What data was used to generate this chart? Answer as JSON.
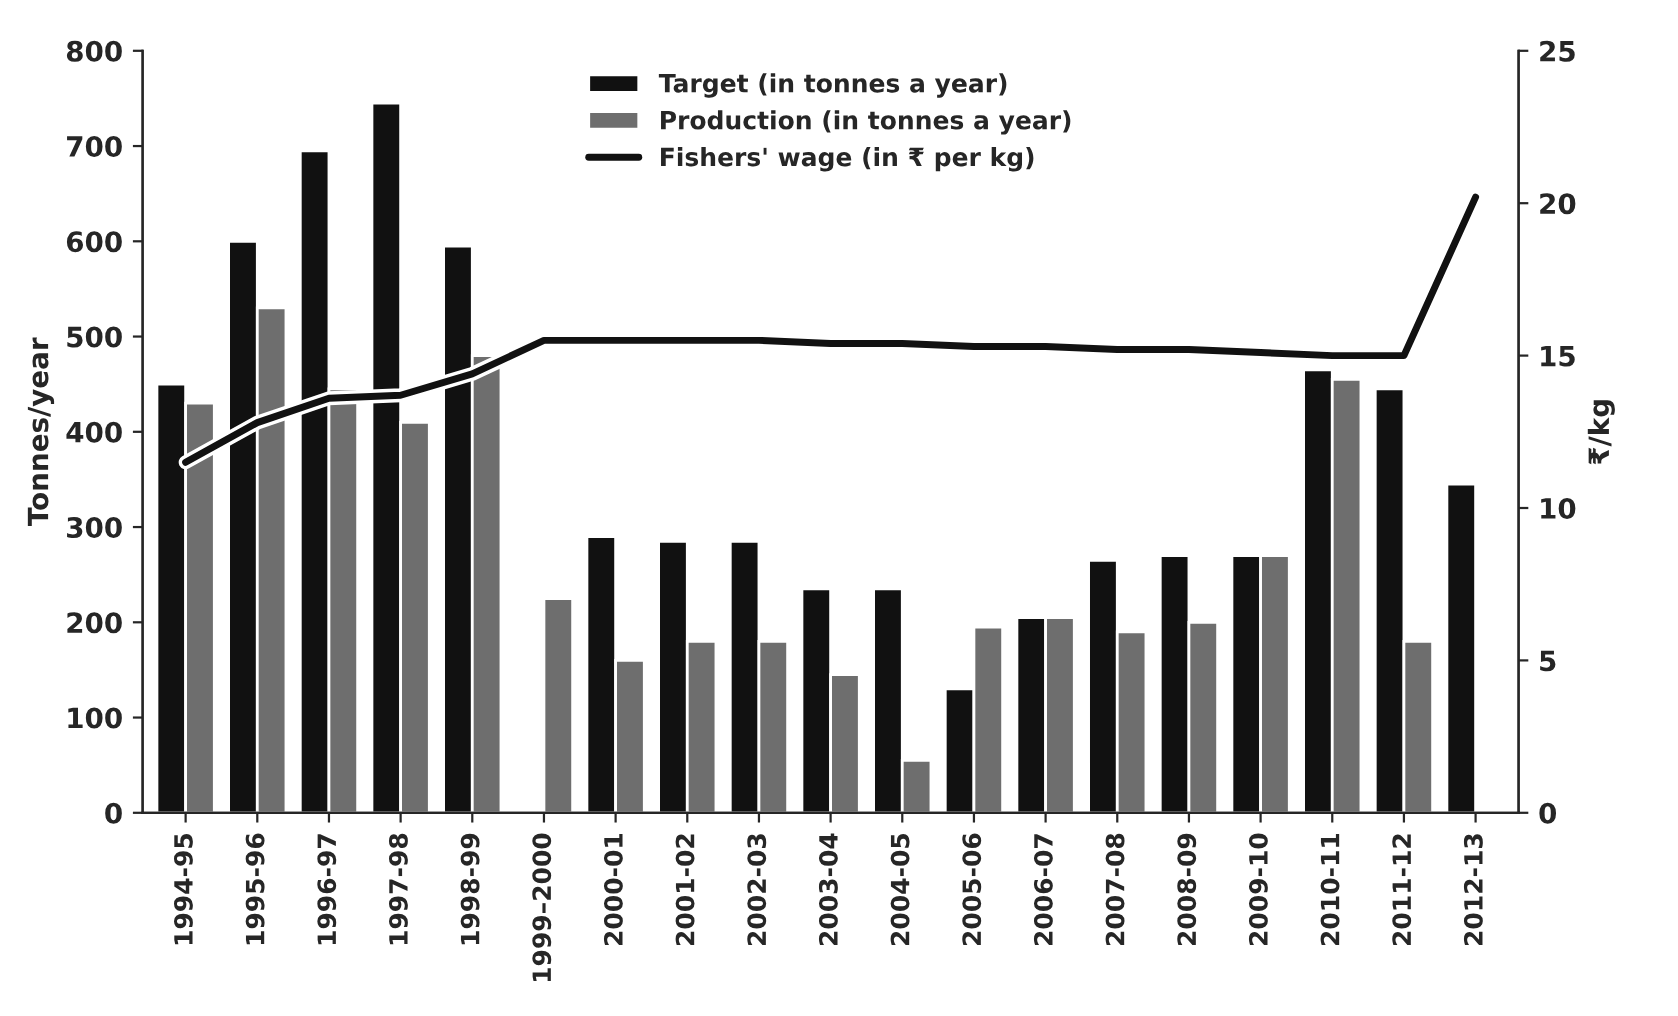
{
  "chart_data": {
    "type": "bar",
    "ylabel": "Tonnes/year",
    "y2label": "₹/kg",
    "categories": [
      "1994-95",
      "1995-96",
      "1996-97",
      "1997-98",
      "1998-99",
      "1999–2000",
      "2000-01",
      "2001-02",
      "2002-03",
      "2003-04",
      "2004-05",
      "2005-06",
      "2006-07",
      "2007-08",
      "2008-09",
      "2009-10",
      "2010-11",
      "2011-12",
      "2012-13"
    ],
    "series": [
      {
        "name": "Target (in tonnes a year)",
        "color": "#111111",
        "values": [
          450,
          600,
          695,
          745,
          595,
          null,
          290,
          285,
          285,
          235,
          235,
          130,
          205,
          265,
          270,
          270,
          465,
          445,
          345
        ]
      },
      {
        "name": "Production (in tonnes a year)",
        "color": "#6e6e6e",
        "values": [
          430,
          530,
          445,
          410,
          480,
          225,
          160,
          180,
          180,
          145,
          55,
          195,
          205,
          190,
          200,
          270,
          455,
          180,
          null
        ]
      },
      {
        "name": "Fishers' wage (in ₹ per kg)",
        "type": "line",
        "axis": "y2",
        "color": "#111111",
        "values": [
          11.5,
          12.8,
          13.6,
          13.7,
          14.4,
          15.5,
          15.5,
          15.5,
          15.5,
          15.4,
          15.4,
          15.3,
          15.3,
          15.2,
          15.2,
          15.1,
          15.0,
          15.0,
          20.2
        ]
      }
    ],
    "ylim": [
      0,
      800
    ],
    "yticks": [
      0,
      100,
      200,
      300,
      400,
      500,
      600,
      700,
      800
    ],
    "y2lim": [
      0,
      25
    ],
    "y2ticks": [
      0,
      5,
      10,
      15,
      20,
      25
    ],
    "grid": false,
    "legend": "top",
    "marker": "none",
    "line_style": "solid"
  }
}
